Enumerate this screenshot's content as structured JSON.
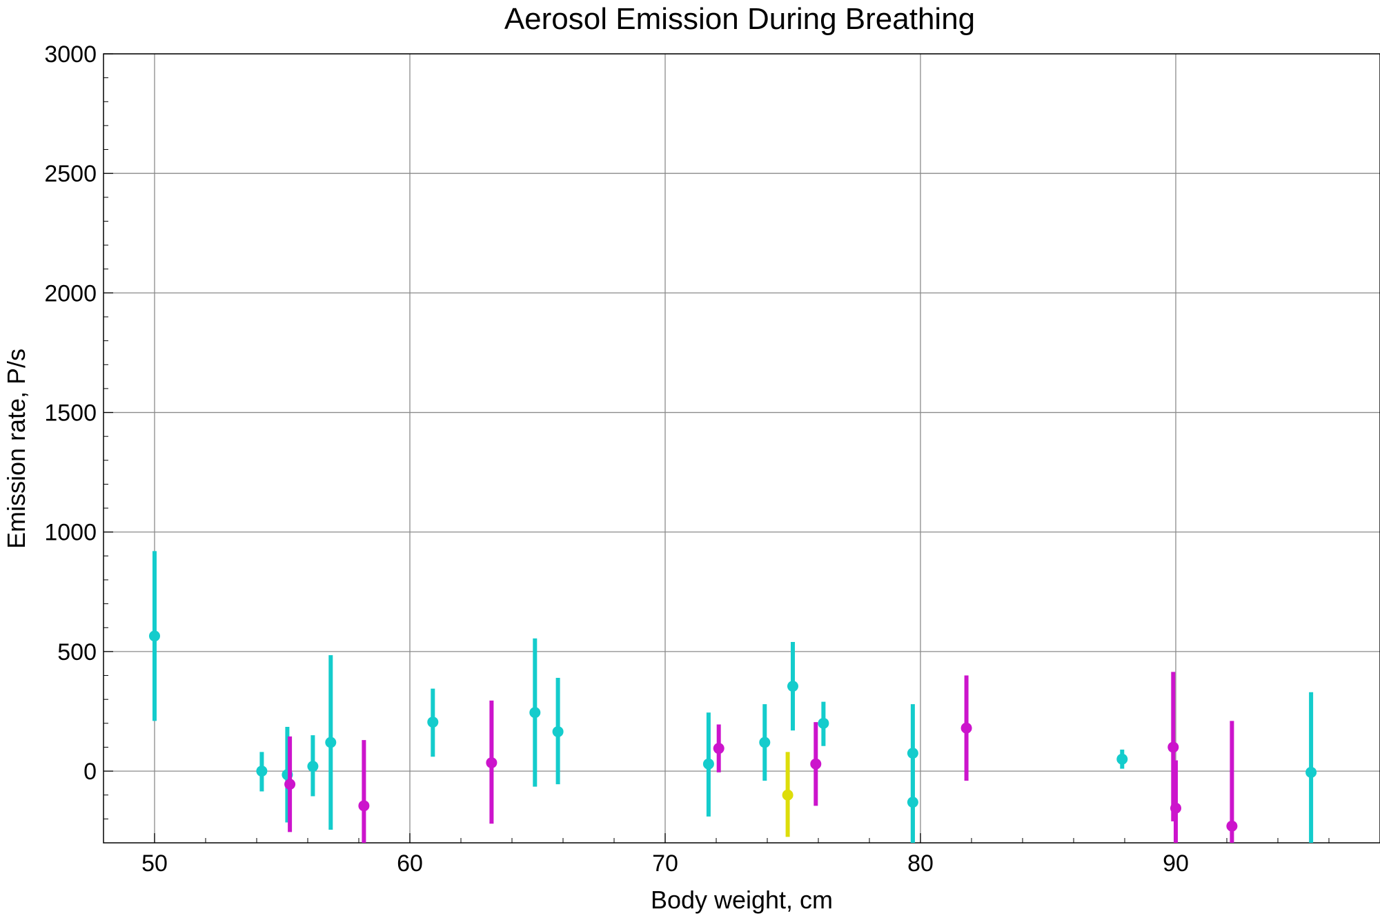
{
  "chart_data": {
    "type": "scatter",
    "title": "Aerosol Emission During Breathing",
    "xlabel": "Body weight,  cm",
    "ylabel": "Emission rate,  P/s",
    "xlim": [
      48,
      98
    ],
    "ylim": [
      -300,
      3000
    ],
    "xticks": [
      50,
      60,
      70,
      80,
      90
    ],
    "yticks": [
      0,
      500,
      1000,
      1500,
      2000,
      2500,
      3000
    ],
    "grid": true,
    "colors": {
      "cyan": "#14cccc",
      "magenta": "#cc14cc",
      "yellow": "#dddd0a"
    },
    "series": [
      {
        "color": "#14cccc",
        "points": [
          {
            "x": 50.0,
            "y": 565,
            "lo": 210,
            "hi": 920
          },
          {
            "x": 54.2,
            "y": 0,
            "lo": -85,
            "hi": 80
          },
          {
            "x": 55.2,
            "y": -15,
            "lo": -215,
            "hi": 185
          },
          {
            "x": 56.2,
            "y": 20,
            "lo": -105,
            "hi": 150
          },
          {
            "x": 56.9,
            "y": 120,
            "lo": -245,
            "hi": 485
          },
          {
            "x": 60.9,
            "y": 205,
            "lo": 60,
            "hi": 345
          },
          {
            "x": 64.9,
            "y": 245,
            "lo": -65,
            "hi": 555
          },
          {
            "x": 65.8,
            "y": 165,
            "lo": -55,
            "hi": 390
          },
          {
            "x": 71.7,
            "y": 30,
            "lo": -190,
            "hi": 245
          },
          {
            "x": 73.9,
            "y": 120,
            "lo": -40,
            "hi": 280
          },
          {
            "x": 75.0,
            "y": 355,
            "lo": 170,
            "hi": 540
          },
          {
            "x": 76.2,
            "y": 200,
            "lo": 105,
            "hi": 290
          },
          {
            "x": 79.7,
            "y": 75,
            "lo": -300,
            "hi": 280
          },
          {
            "x": 79.7,
            "y": -130,
            "lo": -300,
            "hi": 50
          },
          {
            "x": 87.9,
            "y": 50,
            "lo": 10,
            "hi": 90
          },
          {
            "x": 95.3,
            "y": -5,
            "lo": -300,
            "hi": 330
          }
        ]
      },
      {
        "color": "#cc14cc",
        "points": [
          {
            "x": 55.3,
            "y": -55,
            "lo": -255,
            "hi": 145
          },
          {
            "x": 58.2,
            "y": -145,
            "lo": -300,
            "hi": 130
          },
          {
            "x": 63.2,
            "y": 35,
            "lo": -220,
            "hi": 295
          },
          {
            "x": 72.1,
            "y": 95,
            "lo": -5,
            "hi": 195
          },
          {
            "x": 75.9,
            "y": 30,
            "lo": -145,
            "hi": 205
          },
          {
            "x": 81.8,
            "y": 180,
            "lo": -40,
            "hi": 400
          },
          {
            "x": 89.9,
            "y": 100,
            "lo": -210,
            "hi": 415
          },
          {
            "x": 90.0,
            "y": -155,
            "lo": -300,
            "hi": 45
          },
          {
            "x": 92.2,
            "y": -230,
            "lo": -300,
            "hi": 210
          }
        ]
      },
      {
        "color": "#dddd0a",
        "points": [
          {
            "x": 74.8,
            "y": -100,
            "lo": -275,
            "hi": 80
          }
        ]
      }
    ]
  }
}
